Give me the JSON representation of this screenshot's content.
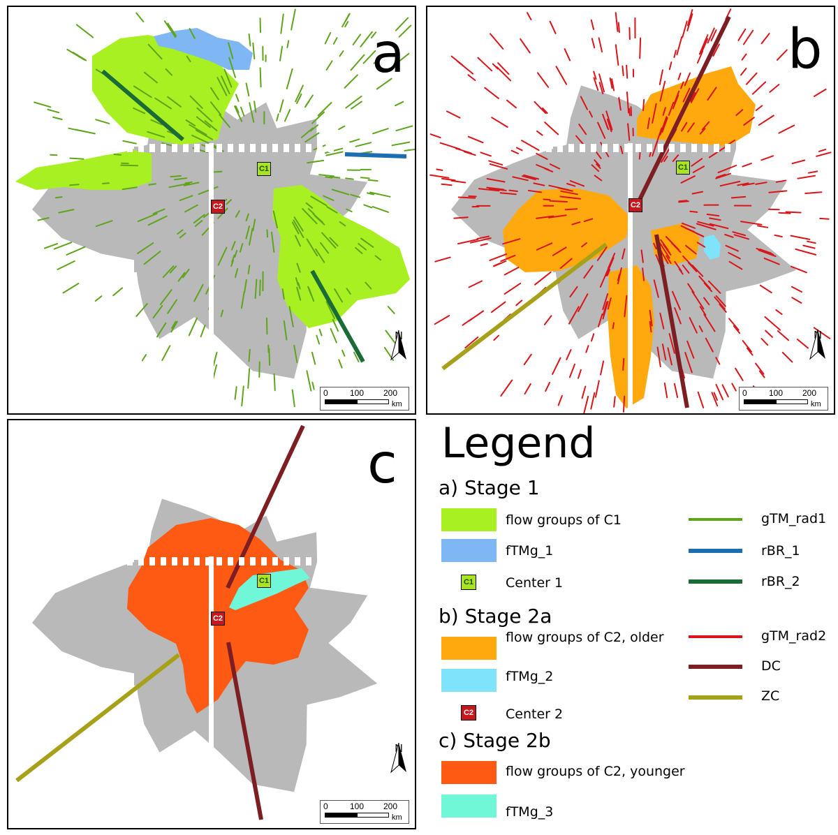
{
  "panels": {
    "a": {
      "letter": "a"
    },
    "b": {
      "letter": "b"
    },
    "c": {
      "letter": "c"
    }
  },
  "map_common": {
    "north_label": "N",
    "scale_ticks": [
      "0",
      "100",
      "200"
    ],
    "scale_unit": "km",
    "center1_label": "C1",
    "center2_label": "C2"
  },
  "colors": {
    "gray_base": "#b9b9b9",
    "flow_c1": "#a8f022",
    "fTMg_1": "#7fb6f4",
    "flow_c2_older": "#ffa90f",
    "fTMg_2": "#7ee3fb",
    "flow_c2_younger": "#ff5a14",
    "fTMg_3": "#6ff7d7",
    "gTM_rad1": "#5ea41c",
    "rBR_1": "#1b6fb0",
    "rBR_2": "#1b6b36",
    "gTM_rad2": "#d9151a",
    "DC": "#7d1e23",
    "ZC": "#a6a118"
  },
  "legend": {
    "title": "Legend",
    "stage1": {
      "heading": "a) Stage 1",
      "items": [
        {
          "label": "flow groups of C1",
          "color": "#a8f022"
        },
        {
          "label": "fTMg_1",
          "color": "#7fb6f4"
        },
        {
          "label": "Center 1",
          "icon": "C1"
        }
      ]
    },
    "stage2a": {
      "heading": "b) Stage 2a",
      "items": [
        {
          "label": "flow groups of C2, older",
          "color": "#ffa90f"
        },
        {
          "label": "fTMg_2",
          "color": "#7ee3fb"
        },
        {
          "label": "Center 2",
          "icon": "C2"
        }
      ]
    },
    "stage2b": {
      "heading": "c) Stage 2b",
      "items": [
        {
          "label": "flow groups of C2, younger",
          "color": "#ff5a14"
        },
        {
          "label": "fTMg_3",
          "color": "#6ff7d7"
        }
      ]
    },
    "lines": [
      {
        "label": "gTM_rad1",
        "color": "#5ea41c"
      },
      {
        "label": "rBR_1",
        "color": "#1b6fb0"
      },
      {
        "label": "rBR_2",
        "color": "#1b6b36"
      },
      {
        "label": "gTM_rad2",
        "color": "#d9151a"
      },
      {
        "label": "DC",
        "color": "#7d1e23"
      },
      {
        "label": "ZC",
        "color": "#a6a118"
      }
    ]
  }
}
